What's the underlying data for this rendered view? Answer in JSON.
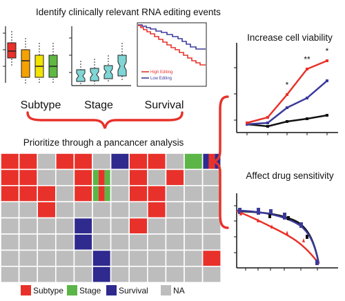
{
  "headings": {
    "identify": "Identify clinically relevant RNA editing events",
    "prioritize": "Prioritize through a pancancer analysis",
    "viability": "Increase cell viability",
    "drug": "Affect drug sensitivity"
  },
  "panel_labels": {
    "subtype": "Subtype",
    "stage": "Stage",
    "survival": "Survival"
  },
  "survival_legend": {
    "high": "High Editing",
    "low": "Low Editing"
  },
  "significance_marks": [
    "*",
    "**",
    "*"
  ],
  "heatmap": {
    "legend": [
      {
        "key": "S",
        "label": "Subtype",
        "color": "#e8312a"
      },
      {
        "key": "G",
        "label": "Stage",
        "color": "#5cb547"
      },
      {
        "key": "V",
        "label": "Survival",
        "color": "#2f2a8e"
      },
      {
        "key": "N",
        "label": "NA",
        "color": "#bdbdbd"
      }
    ],
    "rows": [
      "SSNSSNVSSNGV",
      "SSNNSGNSNSNN",
      "SSSNSGNSSNNN",
      "NNSNNNNNSNNN",
      "NNNNVNNSNNNN",
      "NNNNVNNNNNNN",
      "NNNNNVNNNNNS",
      "NNNNNVNNNNNN"
    ],
    "split_cells": [
      {
        "row": 0,
        "col": 11,
        "parts": [
          "V",
          "S",
          "V"
        ]
      },
      {
        "row": 1,
        "col": 5,
        "parts": [
          "G",
          "S",
          "G"
        ]
      },
      {
        "row": 2,
        "col": 5,
        "parts": [
          "G",
          "S",
          "G"
        ]
      }
    ]
  },
  "colors": {
    "red": "#e8312a",
    "blue": "#3b3a9c",
    "black": "#111111",
    "orange": "#f5a100",
    "yellow": "#f2e300",
    "green": "#5fb840",
    "teal": "#7fd6d4",
    "brace": "#e8312a"
  }
}
